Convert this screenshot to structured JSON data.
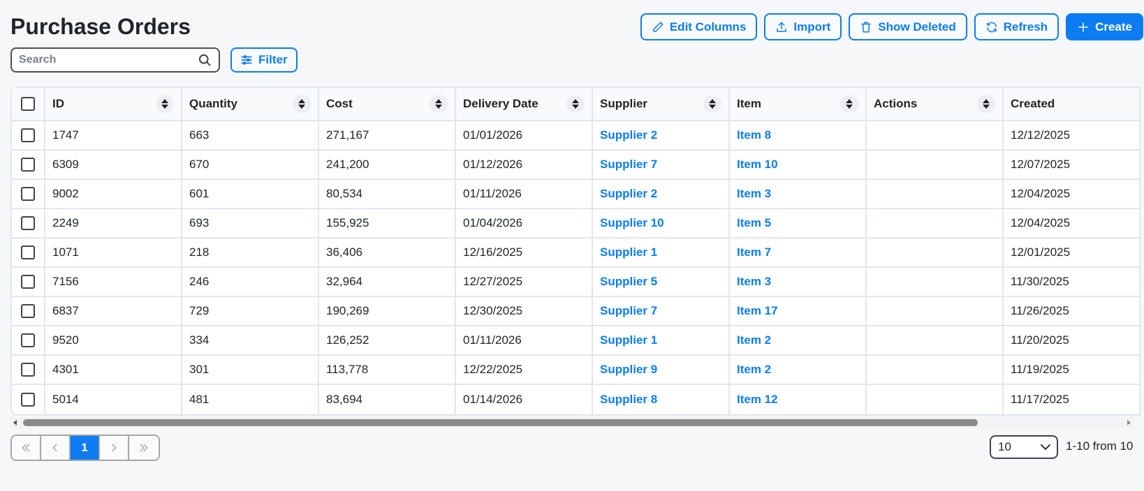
{
  "header": {
    "title": "Purchase Orders"
  },
  "toolbar": {
    "buttons": [
      {
        "label": "Edit Columns",
        "icon": "pencil-icon"
      },
      {
        "label": "Import",
        "icon": "upload-icon"
      },
      {
        "label": "Show Deleted",
        "icon": "trash-icon"
      },
      {
        "label": "Refresh",
        "icon": "refresh-icon"
      },
      {
        "label": "Create",
        "icon": "plus-icon",
        "primary": true
      }
    ]
  },
  "search": {
    "placeholder": "Search",
    "value": ""
  },
  "filter": {
    "label": "Filter"
  },
  "table": {
    "columns": [
      "ID",
      "Quantity",
      "Cost",
      "Delivery Date",
      "Supplier",
      "Item",
      "Actions",
      "Created"
    ],
    "rows": [
      {
        "id": "1747",
        "quantity": "663",
        "cost": "271,167",
        "delivery_date": "01/01/2026",
        "supplier": "Supplier 2",
        "item": "Item 8",
        "actions": "",
        "created": "12/12/2025"
      },
      {
        "id": "6309",
        "quantity": "670",
        "cost": "241,200",
        "delivery_date": "01/12/2026",
        "supplier": "Supplier 7",
        "item": "Item 10",
        "actions": "",
        "created": "12/07/2025"
      },
      {
        "id": "9002",
        "quantity": "601",
        "cost": "80,534",
        "delivery_date": "01/11/2026",
        "supplier": "Supplier 2",
        "item": "Item 3",
        "actions": "",
        "created": "12/04/2025"
      },
      {
        "id": "2249",
        "quantity": "693",
        "cost": "155,925",
        "delivery_date": "01/04/2026",
        "supplier": "Supplier 10",
        "item": "Item 5",
        "actions": "",
        "created": "12/04/2025"
      },
      {
        "id": "1071",
        "quantity": "218",
        "cost": "36,406",
        "delivery_date": "12/16/2025",
        "supplier": "Supplier 1",
        "item": "Item 7",
        "actions": "",
        "created": "12/01/2025"
      },
      {
        "id": "7156",
        "quantity": "246",
        "cost": "32,964",
        "delivery_date": "12/27/2025",
        "supplier": "Supplier 5",
        "item": "Item 3",
        "actions": "",
        "created": "11/30/2025"
      },
      {
        "id": "6837",
        "quantity": "729",
        "cost": "190,269",
        "delivery_date": "12/30/2025",
        "supplier": "Supplier 7",
        "item": "Item 17",
        "actions": "",
        "created": "11/26/2025"
      },
      {
        "id": "9520",
        "quantity": "334",
        "cost": "126,252",
        "delivery_date": "01/11/2026",
        "supplier": "Supplier 1",
        "item": "Item 2",
        "actions": "",
        "created": "11/20/2025"
      },
      {
        "id": "4301",
        "quantity": "301",
        "cost": "113,778",
        "delivery_date": "12/22/2025",
        "supplier": "Supplier 9",
        "item": "Item 2",
        "actions": "",
        "created": "11/19/2025"
      },
      {
        "id": "5014",
        "quantity": "481",
        "cost": "83,694",
        "delivery_date": "01/14/2026",
        "supplier": "Supplier 8",
        "item": "Item 12",
        "actions": "",
        "created": "11/17/2025"
      }
    ]
  },
  "pagination": {
    "current_page": "1",
    "page_size": "10",
    "range_info": "1-10 from 10"
  },
  "colors": {
    "accent": "#0d7cf2",
    "background": "#f6f7f9",
    "border": "#e1e6ee",
    "text": "#212529"
  }
}
